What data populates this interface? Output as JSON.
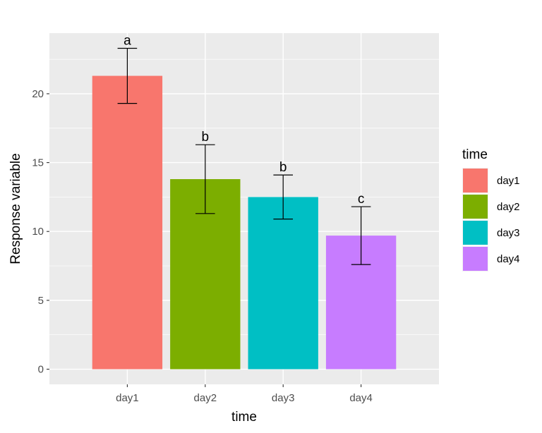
{
  "chart_data": {
    "type": "bar",
    "categories": [
      "day1",
      "day2",
      "day3",
      "day4"
    ],
    "values": [
      21.3,
      13.8,
      12.5,
      9.7
    ],
    "error_low": [
      19.3,
      11.3,
      10.9,
      7.6
    ],
    "error_high": [
      23.3,
      16.3,
      14.1,
      11.8
    ],
    "significance_labels": [
      "a",
      "b",
      "b",
      "c"
    ],
    "colors": [
      "#F8766D",
      "#7CAE00",
      "#00BFC4",
      "#C77CFF"
    ],
    "xlabel": "time",
    "ylabel": "Response variable",
    "ylim": [
      -1.1,
      24.4
    ],
    "yticks": [
      0,
      5,
      10,
      15,
      20
    ],
    "ytick_labels": [
      "0",
      "5",
      "10",
      "15",
      "20"
    ],
    "grid": true,
    "panel_background": "#EBEBEB",
    "legend": {
      "title": "time",
      "placement": "right",
      "entries": [
        "day1",
        "day2",
        "day3",
        "day4"
      ]
    }
  }
}
